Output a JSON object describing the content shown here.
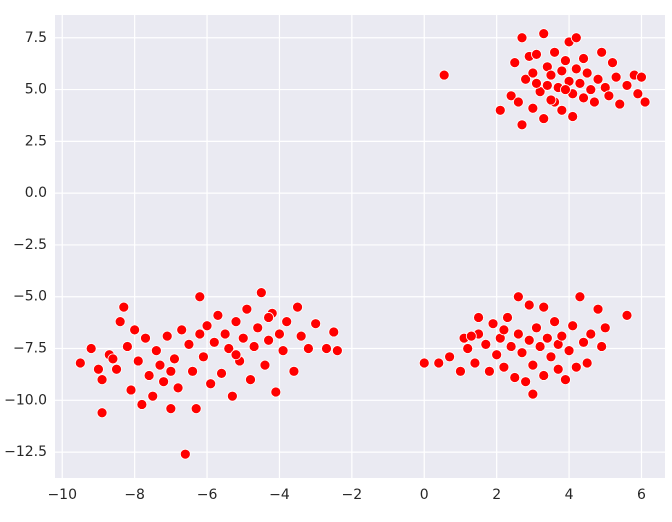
{
  "chart_data": {
    "type": "scatter",
    "xlim": [
      -10.2,
      6.65
    ],
    "ylim": [
      -13.75,
      8.6
    ],
    "xticks": [
      {
        "value": -10,
        "label": "−10"
      },
      {
        "value": -8,
        "label": "−8"
      },
      {
        "value": -6,
        "label": "−6"
      },
      {
        "value": -4,
        "label": "−4"
      },
      {
        "value": -2,
        "label": "−2"
      },
      0,
      2,
      4,
      6
    ],
    "yticks": [
      {
        "value": 7.5,
        "label": "7.5"
      },
      {
        "value": 5,
        "label": "5.0"
      },
      {
        "value": 2.5,
        "label": "2.5"
      },
      {
        "value": 0,
        "label": "0.0"
      },
      {
        "value": -2.5,
        "label": "−2.5"
      },
      {
        "value": -5,
        "label": "−5.0"
      },
      {
        "value": -7.5,
        "label": "−7.5"
      },
      {
        "value": -10,
        "label": "−10.0"
      },
      {
        "value": -12.5,
        "label": "−12.5"
      }
    ],
    "grid": true,
    "series": [
      {
        "color": "#ff0000",
        "x": [
          2.1,
          2.4,
          2.6,
          2.7,
          2.7,
          2.8,
          2.9,
          3.0,
          3.0,
          3.1,
          3.2,
          3.3,
          3.3,
          3.4,
          3.4,
          3.5,
          3.6,
          3.6,
          3.7,
          3.8,
          3.8,
          3.9,
          4.0,
          4.0,
          4.1,
          4.1,
          4.2,
          4.2,
          4.3,
          4.4,
          4.5,
          4.6,
          4.7,
          4.8,
          4.9,
          5.0,
          5.1,
          5.2,
          5.3,
          5.4,
          5.6,
          5.8,
          5.9,
          6.0,
          6.1,
          2.5,
          3.1,
          3.5,
          4.4,
          3.9,
          0.0,
          0.4,
          0.7,
          1.0,
          1.1,
          1.2,
          1.4,
          1.5,
          1.5,
          1.7,
          1.8,
          1.9,
          2.0,
          2.1,
          2.2,
          2.3,
          2.4,
          2.5,
          2.6,
          2.6,
          2.7,
          2.8,
          2.9,
          2.9,
          3.0,
          3.0,
          3.1,
          3.2,
          3.3,
          3.3,
          3.4,
          3.5,
          3.6,
          3.7,
          3.7,
          3.8,
          3.9,
          4.0,
          4.1,
          4.2,
          4.3,
          4.4,
          4.5,
          4.6,
          4.8,
          4.9,
          5.0,
          5.6,
          1.3,
          2.2,
          -9.5,
          -9.2,
          -9.0,
          -8.9,
          -8.9,
          -8.7,
          -8.5,
          -8.4,
          -8.3,
          -8.2,
          -8.1,
          -8.0,
          -7.9,
          -7.8,
          -7.7,
          -7.6,
          -7.5,
          -7.4,
          -7.3,
          -7.2,
          -7.1,
          -7.0,
          -6.9,
          -6.8,
          -6.7,
          -6.6,
          -6.5,
          -6.4,
          -6.3,
          -6.2,
          -6.1,
          -6.0,
          -5.9,
          -5.8,
          -5.7,
          -5.6,
          -5.5,
          -5.4,
          -5.3,
          -5.2,
          -5.1,
          -5.0,
          -4.9,
          -4.8,
          -4.7,
          -4.6,
          -4.5,
          -4.4,
          -4.3,
          -4.2,
          -4.1,
          -4.0,
          -3.9,
          -3.8,
          -3.6,
          -3.5,
          -3.4,
          -3.2,
          -3.0,
          -2.7,
          -2.5,
          -2.4,
          -8.6,
          -7.0,
          -6.2,
          -5.2,
          -4.3,
          0.55
        ],
        "values": [
          4.0,
          4.7,
          4.4,
          3.3,
          7.5,
          5.5,
          6.6,
          4.1,
          5.8,
          6.7,
          4.9,
          7.7,
          3.6,
          5.2,
          6.1,
          5.7,
          4.4,
          6.8,
          5.1,
          4.0,
          5.9,
          6.4,
          5.4,
          7.3,
          3.7,
          4.8,
          7.5,
          6.0,
          5.3,
          4.6,
          5.8,
          5.0,
          4.4,
          5.5,
          6.8,
          5.1,
          4.7,
          6.3,
          5.6,
          4.3,
          5.2,
          5.7,
          4.8,
          5.6,
          4.4,
          6.3,
          5.3,
          4.5,
          6.5,
          5.0,
          -8.2,
          -8.2,
          -7.9,
          -8.6,
          -7.0,
          -7.5,
          -8.2,
          -6.0,
          -6.8,
          -7.3,
          -8.6,
          -6.3,
          -7.8,
          -7.0,
          -8.4,
          -6.0,
          -7.4,
          -8.9,
          -5.0,
          -6.8,
          -7.7,
          -9.1,
          -5.4,
          -7.1,
          -9.7,
          -8.3,
          -6.5,
          -7.4,
          -8.8,
          -5.5,
          -7.0,
          -7.9,
          -6.2,
          -8.5,
          -7.3,
          -6.9,
          -9.0,
          -7.6,
          -6.4,
          -8.4,
          -5.0,
          -7.2,
          -8.2,
          -6.8,
          -5.6,
          -7.4,
          -6.5,
          -5.9,
          -6.9,
          -6.6,
          -8.2,
          -7.5,
          -8.5,
          -9.0,
          -10.6,
          -7.8,
          -8.5,
          -6.2,
          -5.5,
          -7.4,
          -9.5,
          -6.6,
          -8.1,
          -10.2,
          -7.0,
          -8.8,
          -9.8,
          -7.6,
          -8.3,
          -9.1,
          -6.9,
          -10.4,
          -8.0,
          -9.4,
          -6.6,
          -12.6,
          -7.3,
          -8.6,
          -10.4,
          -5.0,
          -7.9,
          -6.4,
          -9.2,
          -7.2,
          -5.9,
          -8.7,
          -6.8,
          -7.5,
          -9.8,
          -6.2,
          -8.1,
          -7.0,
          -5.6,
          -9.0,
          -7.4,
          -6.5,
          -4.8,
          -8.3,
          -7.1,
          -5.8,
          -9.6,
          -6.8,
          -7.6,
          -6.2,
          -8.6,
          -5.5,
          -6.9,
          -7.5,
          -6.3,
          -7.5,
          -6.7,
          -7.6,
          -8.0,
          -8.6,
          -6.8,
          -7.8,
          -6.0,
          5.7
        ]
      }
    ]
  }
}
